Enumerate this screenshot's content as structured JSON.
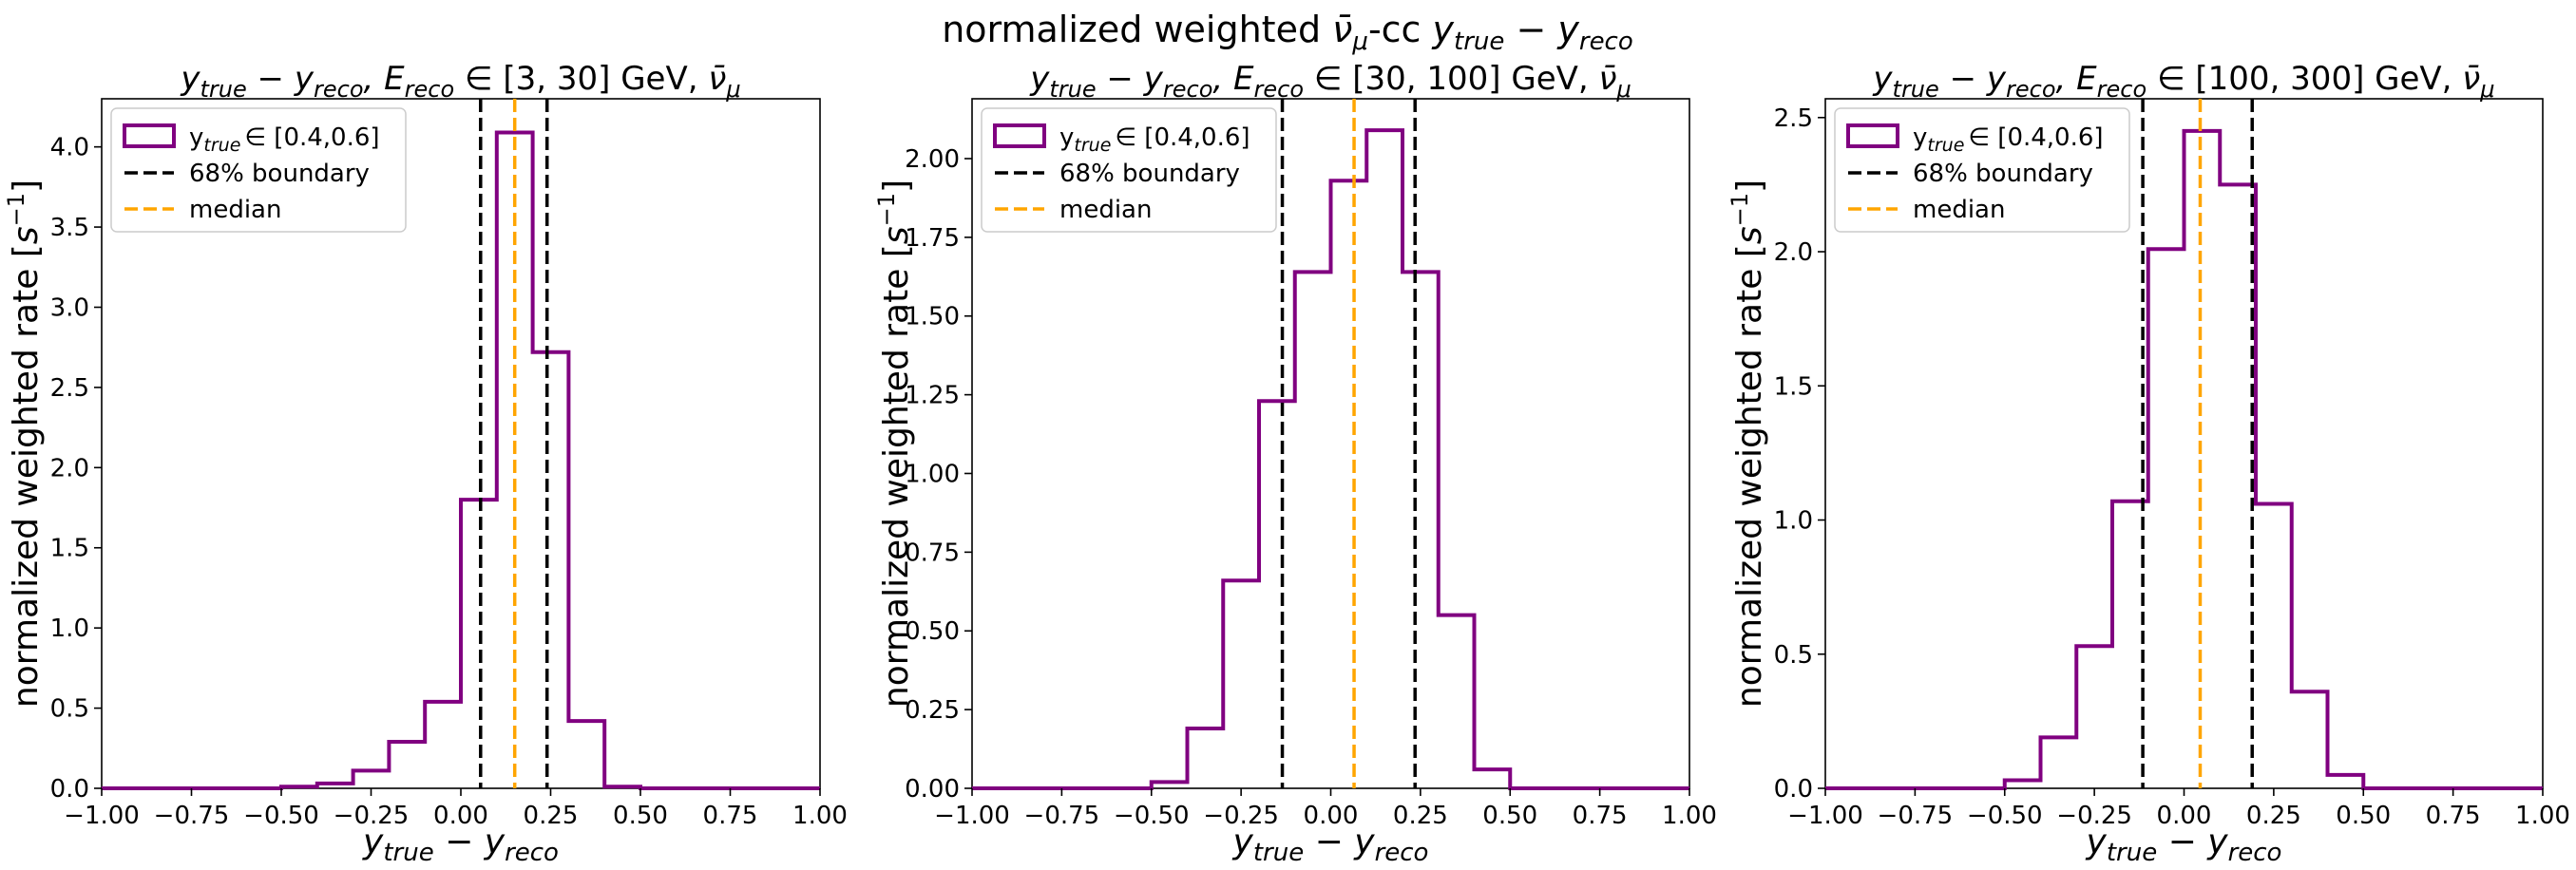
{
  "figure": {
    "suptitle": {
      "main": "normalized weighted ",
      "nu": "ν̄",
      "mu": "μ",
      "mid": "-cc ",
      "var": "y",
      "true_sub": "true",
      "minus": " − ",
      "reco_sub": "reco"
    }
  },
  "colors": {
    "histogram": "#800080",
    "boundary": "#000000",
    "median": "#ffa500",
    "legend_border": "#cccccc"
  },
  "chart_data": [
    {
      "type": "histogram",
      "title": {
        "prefix": "y",
        "sub1": "true",
        "mid": " − y",
        "sub2": "reco",
        "e": ", E",
        "sub3": "reco",
        "range": " ∈ [3, 30] GeV, ",
        "nu": "ν̄",
        "mu": "μ"
      },
      "xlabel": {
        "y": "y",
        "sub1": "true",
        "minus": " − y",
        "sub2": "reco"
      },
      "ylabel": {
        "text": "normalized weighted rate [",
        "s": "s",
        "exp": "−1",
        "close": "]"
      },
      "xlim": [
        -1.0,
        1.0
      ],
      "ylim": [
        0,
        4.3
      ],
      "xticks": [
        "−1.00",
        "−0.75",
        "−0.50",
        "−0.25",
        "0.00",
        "0.25",
        "0.50",
        "0.75",
        "1.00"
      ],
      "xtick_values": [
        -1.0,
        -0.75,
        -0.5,
        -0.25,
        0.0,
        0.25,
        0.5,
        0.75,
        1.0
      ],
      "yticks": [
        "0.0",
        "0.5",
        "1.0",
        "1.5",
        "2.0",
        "2.5",
        "3.0",
        "3.5",
        "4.0"
      ],
      "ytick_values": [
        0.0,
        0.5,
        1.0,
        1.5,
        2.0,
        2.5,
        3.0,
        3.5,
        4.0
      ],
      "bin_edges": [
        -1.0,
        -0.9,
        -0.8,
        -0.7,
        -0.6,
        -0.5,
        -0.4,
        -0.3,
        -0.2,
        -0.1,
        0.0,
        0.1,
        0.2,
        0.3,
        0.4,
        0.5,
        0.6,
        0.7,
        0.8,
        0.9,
        1.0
      ],
      "values": [
        0,
        0,
        0,
        0,
        0,
        0.01,
        0.03,
        0.11,
        0.29,
        0.54,
        1.8,
        4.09,
        2.72,
        0.42,
        0.01,
        0,
        0,
        0,
        0,
        0
      ],
      "boundary": [
        0.055,
        0.24
      ],
      "median": 0.15,
      "legend": {
        "hist_prefix": "y",
        "hist_sub": "true",
        "hist_range": "∈ [0.4,0.6]",
        "boundary": "68% boundary",
        "median": "median",
        "placement": "upper-left"
      }
    },
    {
      "type": "histogram",
      "title": {
        "prefix": "y",
        "sub1": "true",
        "mid": " − y",
        "sub2": "reco",
        "e": ", E",
        "sub3": "reco",
        "range": " ∈ [30, 100] GeV, ",
        "nu": "ν̄",
        "mu": "μ"
      },
      "xlabel": {
        "y": "y",
        "sub1": "true",
        "minus": " − y",
        "sub2": "reco"
      },
      "ylabel": {
        "text": "normalized weighted rate [",
        "s": "s",
        "exp": "−1",
        "close": "]"
      },
      "xlim": [
        -1.0,
        1.0
      ],
      "ylim": [
        0,
        2.19
      ],
      "xticks": [
        "−1.00",
        "−0.75",
        "−0.50",
        "−0.25",
        "0.00",
        "0.25",
        "0.50",
        "0.75",
        "1.00"
      ],
      "xtick_values": [
        -1.0,
        -0.75,
        -0.5,
        -0.25,
        0.0,
        0.25,
        0.5,
        0.75,
        1.0
      ],
      "yticks": [
        "0.00",
        "0.25",
        "0.50",
        "0.75",
        "1.00",
        "1.25",
        "1.50",
        "1.75",
        "2.00"
      ],
      "ytick_values": [
        0.0,
        0.25,
        0.5,
        0.75,
        1.0,
        1.25,
        1.5,
        1.75,
        2.0
      ],
      "bin_edges": [
        -1.0,
        -0.9,
        -0.8,
        -0.7,
        -0.6,
        -0.5,
        -0.4,
        -0.3,
        -0.2,
        -0.1,
        0.0,
        0.1,
        0.2,
        0.3,
        0.4,
        0.5,
        0.6,
        0.7,
        0.8,
        0.9,
        1.0
      ],
      "values": [
        0,
        0,
        0,
        0,
        0,
        0.02,
        0.19,
        0.66,
        1.23,
        1.64,
        1.93,
        2.09,
        1.64,
        0.55,
        0.06,
        0,
        0,
        0,
        0,
        0
      ],
      "boundary": [
        -0.135,
        0.235
      ],
      "median": 0.065,
      "legend": {
        "hist_prefix": "y",
        "hist_sub": "true",
        "hist_range": "∈ [0.4,0.6]",
        "boundary": "68% boundary",
        "median": "median",
        "placement": "upper-left"
      }
    },
    {
      "type": "histogram",
      "title": {
        "prefix": "y",
        "sub1": "true",
        "mid": " − y",
        "sub2": "reco",
        "e": ", E",
        "sub3": "reco",
        "range": " ∈ [100, 300] GeV, ",
        "nu": "ν̄",
        "mu": "μ"
      },
      "xlabel": {
        "y": "y",
        "sub1": "true",
        "minus": " − y",
        "sub2": "reco"
      },
      "ylabel": {
        "text": "normalized weighted rate [",
        "s": "s",
        "exp": "−1",
        "close": "]"
      },
      "xlim": [
        -1.0,
        1.0
      ],
      "ylim": [
        0,
        2.57
      ],
      "xticks": [
        "−1.00",
        "−0.75",
        "−0.50",
        "−0.25",
        "0.00",
        "0.25",
        "0.50",
        "0.75",
        "1.00"
      ],
      "xtick_values": [
        -1.0,
        -0.75,
        -0.5,
        -0.25,
        0.0,
        0.25,
        0.5,
        0.75,
        1.0
      ],
      "yticks": [
        "0.0",
        "0.5",
        "1.0",
        "1.5",
        "2.0",
        "2.5"
      ],
      "ytick_values": [
        0.0,
        0.5,
        1.0,
        1.5,
        2.0,
        2.5
      ],
      "bin_edges": [
        -1.0,
        -0.9,
        -0.8,
        -0.7,
        -0.6,
        -0.5,
        -0.4,
        -0.3,
        -0.2,
        -0.1,
        0.0,
        0.1,
        0.2,
        0.3,
        0.4,
        0.5,
        0.6,
        0.7,
        0.8,
        0.9,
        1.0
      ],
      "values": [
        0,
        0,
        0,
        0,
        0,
        0.03,
        0.19,
        0.53,
        1.07,
        2.01,
        2.45,
        2.25,
        1.06,
        0.36,
        0.05,
        0,
        0,
        0,
        0,
        0
      ],
      "boundary": [
        -0.115,
        0.19
      ],
      "median": 0.045,
      "legend": {
        "hist_prefix": "y",
        "hist_sub": "true",
        "hist_range": "∈ [0.4,0.6]",
        "boundary": "68% boundary",
        "median": "median",
        "placement": "upper-left"
      }
    }
  ]
}
